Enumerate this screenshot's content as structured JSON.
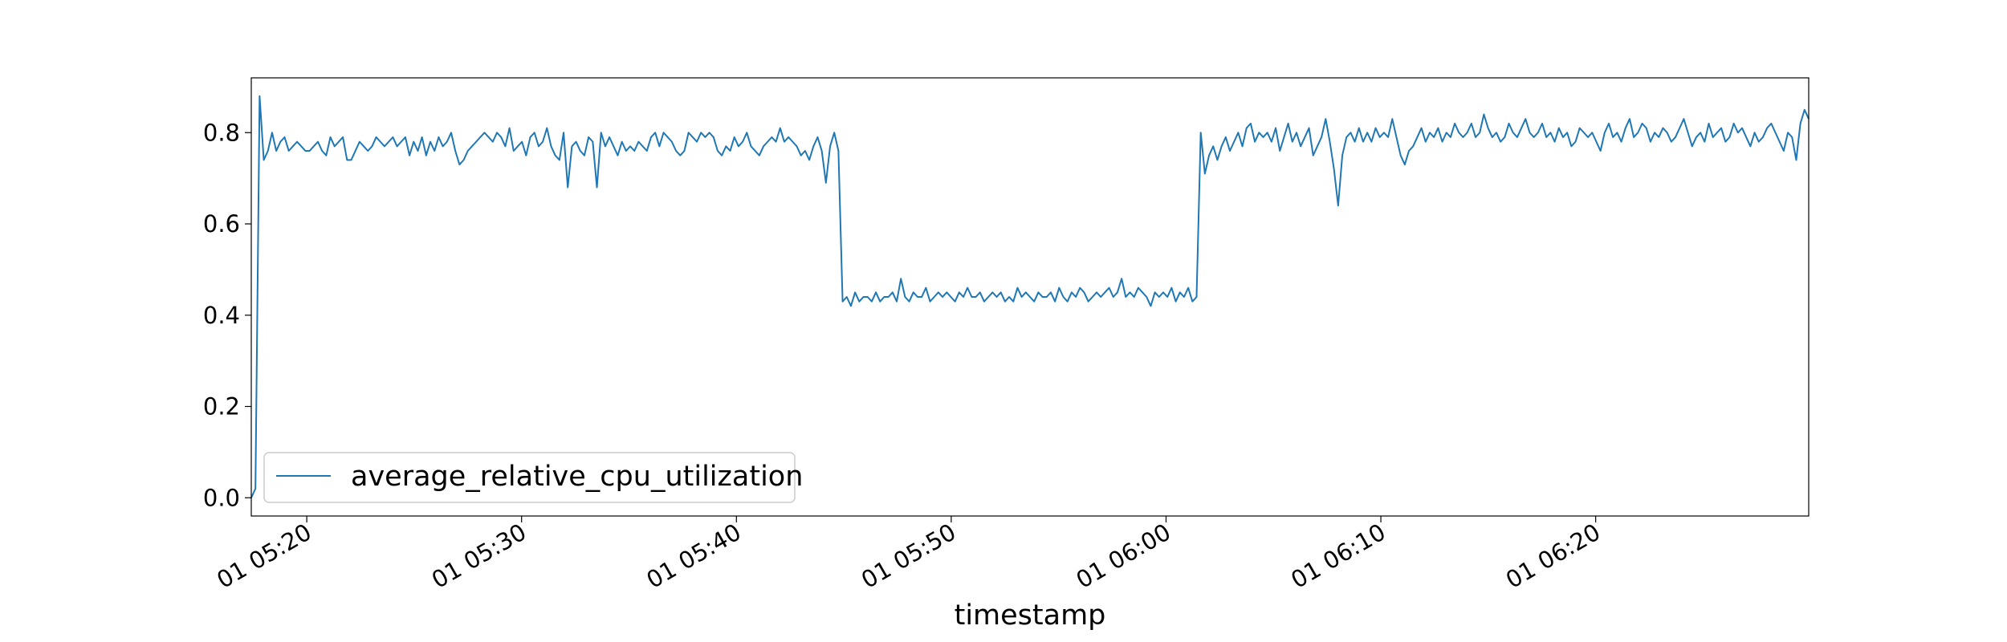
{
  "chart_data": {
    "type": "line",
    "title": "",
    "xlabel": "timestamp",
    "ylabel": "",
    "x_start": "01 05:17:25",
    "x_end": "01 06:29:55",
    "ylim": [
      -0.04,
      0.92
    ],
    "yticks": [
      0.0,
      0.2,
      0.4,
      0.6,
      0.8
    ],
    "xticks": [
      {
        "time": "01 05:20",
        "label": "01 05:20"
      },
      {
        "time": "01 05:30",
        "label": "01 05:30"
      },
      {
        "time": "01 05:40",
        "label": "01 05:40"
      },
      {
        "time": "01 05:50",
        "label": "01 05:50"
      },
      {
        "time": "01 06:00",
        "label": "01 06:00"
      },
      {
        "time": "01 06:10",
        "label": "01 06:10"
      },
      {
        "time": "01 06:20",
        "label": "01 06:20"
      }
    ],
    "grid": false,
    "legend_position": "lower-left",
    "series": [
      {
        "name": "average_relative_cpu_utilization",
        "color": "#1f77b4",
        "values": [
          0.0,
          0.02,
          0.88,
          0.74,
          0.76,
          0.8,
          0.76,
          0.78,
          0.79,
          0.76,
          0.77,
          0.78,
          0.77,
          0.76,
          0.76,
          0.77,
          0.78,
          0.76,
          0.75,
          0.79,
          0.77,
          0.78,
          0.79,
          0.74,
          0.74,
          0.76,
          0.78,
          0.77,
          0.76,
          0.77,
          0.79,
          0.78,
          0.77,
          0.78,
          0.79,
          0.77,
          0.78,
          0.79,
          0.75,
          0.78,
          0.76,
          0.79,
          0.75,
          0.78,
          0.76,
          0.79,
          0.77,
          0.78,
          0.8,
          0.76,
          0.73,
          0.74,
          0.76,
          0.77,
          0.78,
          0.79,
          0.8,
          0.79,
          0.78,
          0.8,
          0.79,
          0.77,
          0.81,
          0.76,
          0.77,
          0.78,
          0.75,
          0.79,
          0.8,
          0.77,
          0.78,
          0.81,
          0.77,
          0.75,
          0.74,
          0.8,
          0.68,
          0.77,
          0.78,
          0.76,
          0.75,
          0.79,
          0.78,
          0.68,
          0.8,
          0.77,
          0.79,
          0.77,
          0.75,
          0.78,
          0.76,
          0.77,
          0.76,
          0.78,
          0.77,
          0.76,
          0.79,
          0.8,
          0.77,
          0.8,
          0.79,
          0.78,
          0.76,
          0.75,
          0.76,
          0.8,
          0.79,
          0.78,
          0.8,
          0.79,
          0.8,
          0.79,
          0.76,
          0.75,
          0.77,
          0.76,
          0.79,
          0.77,
          0.78,
          0.8,
          0.77,
          0.76,
          0.75,
          0.77,
          0.78,
          0.79,
          0.78,
          0.81,
          0.78,
          0.79,
          0.78,
          0.77,
          0.75,
          0.76,
          0.74,
          0.77,
          0.79,
          0.76,
          0.69,
          0.77,
          0.8,
          0.76,
          0.43,
          0.44,
          0.42,
          0.45,
          0.43,
          0.44,
          0.44,
          0.43,
          0.45,
          0.43,
          0.44,
          0.44,
          0.45,
          0.43,
          0.48,
          0.44,
          0.43,
          0.45,
          0.44,
          0.44,
          0.46,
          0.43,
          0.44,
          0.45,
          0.44,
          0.45,
          0.44,
          0.43,
          0.45,
          0.44,
          0.46,
          0.44,
          0.44,
          0.45,
          0.43,
          0.44,
          0.45,
          0.44,
          0.45,
          0.43,
          0.44,
          0.43,
          0.46,
          0.44,
          0.45,
          0.44,
          0.43,
          0.45,
          0.44,
          0.44,
          0.45,
          0.43,
          0.46,
          0.44,
          0.43,
          0.45,
          0.44,
          0.46,
          0.45,
          0.43,
          0.44,
          0.45,
          0.44,
          0.45,
          0.46,
          0.44,
          0.45,
          0.48,
          0.44,
          0.45,
          0.44,
          0.46,
          0.45,
          0.44,
          0.42,
          0.45,
          0.44,
          0.45,
          0.44,
          0.46,
          0.43,
          0.45,
          0.44,
          0.46,
          0.43,
          0.44,
          0.8,
          0.71,
          0.75,
          0.77,
          0.74,
          0.77,
          0.79,
          0.76,
          0.78,
          0.8,
          0.77,
          0.81,
          0.82,
          0.78,
          0.8,
          0.79,
          0.8,
          0.78,
          0.81,
          0.76,
          0.79,
          0.82,
          0.78,
          0.8,
          0.77,
          0.79,
          0.81,
          0.75,
          0.77,
          0.79,
          0.83,
          0.78,
          0.72,
          0.64,
          0.75,
          0.79,
          0.8,
          0.78,
          0.81,
          0.78,
          0.8,
          0.78,
          0.81,
          0.79,
          0.8,
          0.79,
          0.83,
          0.79,
          0.75,
          0.73,
          0.76,
          0.77,
          0.79,
          0.81,
          0.78,
          0.8,
          0.79,
          0.81,
          0.78,
          0.8,
          0.79,
          0.82,
          0.8,
          0.79,
          0.8,
          0.82,
          0.79,
          0.8,
          0.84,
          0.81,
          0.79,
          0.8,
          0.78,
          0.79,
          0.82,
          0.8,
          0.79,
          0.81,
          0.83,
          0.8,
          0.79,
          0.8,
          0.82,
          0.79,
          0.8,
          0.78,
          0.81,
          0.79,
          0.8,
          0.77,
          0.78,
          0.81,
          0.8,
          0.79,
          0.8,
          0.78,
          0.76,
          0.8,
          0.82,
          0.79,
          0.8,
          0.78,
          0.81,
          0.83,
          0.79,
          0.8,
          0.82,
          0.81,
          0.78,
          0.8,
          0.79,
          0.81,
          0.8,
          0.78,
          0.79,
          0.81,
          0.83,
          0.8,
          0.77,
          0.79,
          0.8,
          0.78,
          0.82,
          0.79,
          0.8,
          0.81,
          0.78,
          0.79,
          0.82,
          0.8,
          0.81,
          0.79,
          0.77,
          0.8,
          0.78,
          0.79,
          0.81,
          0.82,
          0.8,
          0.78,
          0.76,
          0.8,
          0.79,
          0.74,
          0.82,
          0.85,
          0.83
        ]
      }
    ]
  }
}
